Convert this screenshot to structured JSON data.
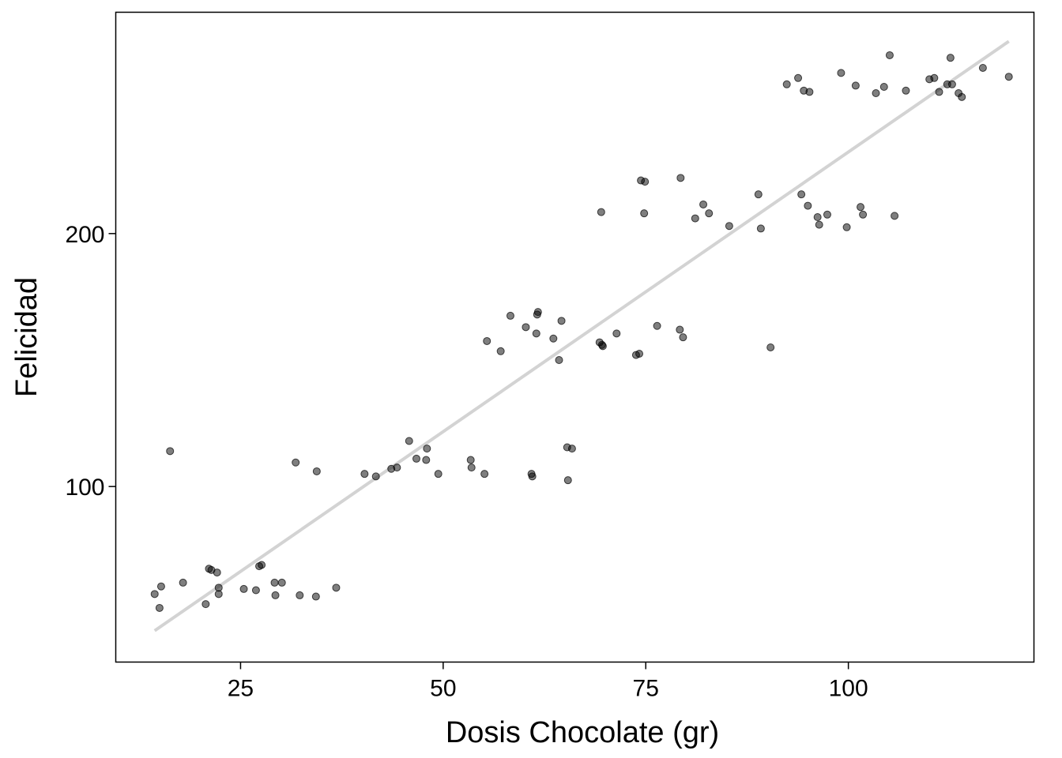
{
  "chart_data": {
    "type": "scatter",
    "title": "",
    "xlabel": "Dosis Chocolate (gr)",
    "ylabel": "Felicidad",
    "xlim": [
      9.6,
      122.9
    ],
    "ylim": [
      30.6,
      287.5
    ],
    "x_ticks": [
      25,
      50,
      75,
      100
    ],
    "y_ticks": [
      100,
      200
    ],
    "grid": false,
    "legend": "none",
    "colors": {
      "points": "#000000",
      "trend_line": "#d3d3d3",
      "frame": "#000000"
    },
    "points": [
      [
        14.4,
        57.5
      ],
      [
        15,
        52
      ],
      [
        15.2,
        60.5
      ],
      [
        16.3,
        114
      ],
      [
        17.9,
        62
      ],
      [
        20.7,
        53.5
      ],
      [
        21.1,
        67.5
      ],
      [
        21.4,
        67
      ],
      [
        22.1,
        66
      ],
      [
        22.3,
        60
      ],
      [
        22.3,
        57.5
      ],
      [
        25.4,
        59.5
      ],
      [
        26.9,
        59
      ],
      [
        27.3,
        68.5
      ],
      [
        27.6,
        69
      ],
      [
        29.2,
        62
      ],
      [
        29.3,
        57
      ],
      [
        30.1,
        62
      ],
      [
        31.8,
        109.5
      ],
      [
        32.3,
        57
      ],
      [
        34.3,
        56.5
      ],
      [
        34.4,
        106
      ],
      [
        36.8,
        60
      ],
      [
        40.3,
        105
      ],
      [
        41.7,
        104
      ],
      [
        43.6,
        107
      ],
      [
        44.3,
        107.5
      ],
      [
        45.8,
        118
      ],
      [
        46.7,
        111
      ],
      [
        47.9,
        110.5
      ],
      [
        48,
        115
      ],
      [
        49.4,
        105
      ],
      [
        53.4,
        110.5
      ],
      [
        53.5,
        107.5
      ],
      [
        55.1,
        105
      ],
      [
        55.4,
        157.5
      ],
      [
        57.1,
        153.5
      ],
      [
        58.3,
        167.5
      ],
      [
        60.2,
        163
      ],
      [
        60.9,
        105
      ],
      [
        61,
        104
      ],
      [
        61.5,
        160.5
      ],
      [
        61.6,
        168
      ],
      [
        61.7,
        169
      ],
      [
        63.6,
        158.5
      ],
      [
        64.3,
        150
      ],
      [
        64.6,
        165.5
      ],
      [
        65.3,
        115.5
      ],
      [
        65.4,
        102.5
      ],
      [
        65.9,
        115
      ],
      [
        69.3,
        157
      ],
      [
        69.5,
        208.5
      ],
      [
        69.6,
        156
      ],
      [
        69.7,
        155.5
      ],
      [
        71.4,
        160.5
      ],
      [
        73.8,
        152
      ],
      [
        74.2,
        152.5
      ],
      [
        74.4,
        221
      ],
      [
        74.8,
        208
      ],
      [
        74.9,
        220.5
      ],
      [
        76.4,
        163.5
      ],
      [
        79.2,
        162
      ],
      [
        79.3,
        222
      ],
      [
        79.6,
        159
      ],
      [
        81.1,
        206
      ],
      [
        82.1,
        211.5
      ],
      [
        82.8,
        208
      ],
      [
        85.3,
        203
      ],
      [
        88.9,
        215.5
      ],
      [
        89.2,
        202
      ],
      [
        90.4,
        155
      ],
      [
        92.4,
        259
      ],
      [
        93.8,
        261.5
      ],
      [
        94.2,
        215.5
      ],
      [
        94.5,
        256.5
      ],
      [
        95,
        211
      ],
      [
        95.2,
        256
      ],
      [
        96.2,
        206.5
      ],
      [
        96.4,
        203.5
      ],
      [
        97.4,
        207.5
      ],
      [
        99.1,
        263.5
      ],
      [
        99.8,
        202.5
      ],
      [
        100.9,
        258.5
      ],
      [
        101.5,
        210.5
      ],
      [
        101.8,
        207.5
      ],
      [
        103.4,
        255.5
      ],
      [
        104.4,
        258
      ],
      [
        105.1,
        270.5
      ],
      [
        105.7,
        207
      ],
      [
        107.1,
        256.5
      ],
      [
        110,
        261
      ],
      [
        110.6,
        261.5
      ],
      [
        111.2,
        256
      ],
      [
        112.2,
        259
      ],
      [
        112.6,
        269.5
      ],
      [
        112.8,
        259
      ],
      [
        113.6,
        255.5
      ],
      [
        114,
        254
      ],
      [
        116.6,
        265.5
      ],
      [
        119.8,
        262
      ]
    ],
    "trend_line": {
      "x": [
        14.4,
        119.8
      ],
      "y": [
        43,
        276
      ]
    }
  }
}
